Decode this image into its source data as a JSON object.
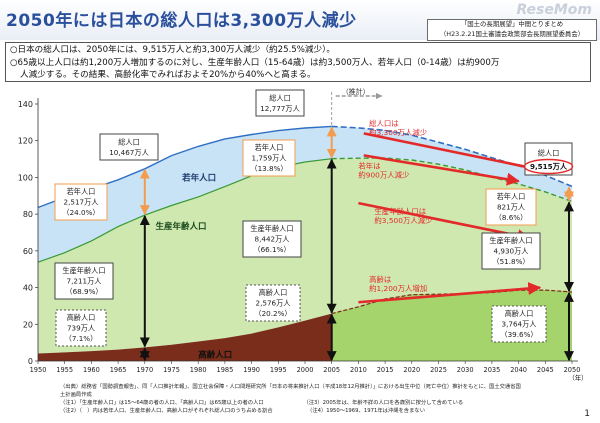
{
  "header": {
    "title": "2050年には日本の総人口は3,300万人減少",
    "watermark": "ReseMom",
    "source_lines": [
      "「国土の長期展望」中間とりまとめ",
      "（H23.2.21国土審議会政策部会長期展望委員会）"
    ]
  },
  "summary": {
    "line1": "○日本の総人口は、2050年には、9,515万人と約3,300万人減少（約25.5%減少）。",
    "line2": "○65歳以上人口は約1,200万人増加するのに対し、生産年齢人口（15-64歳）は約3,500万人、若年人口（0-14歳）は約900万",
    "line3": "人減少する。その結果、高齢化率でみればおよそ20%から40%へと高まる。"
  },
  "chart_data": {
    "type": "area",
    "x": [
      1950,
      1955,
      1960,
      1965,
      1970,
      1975,
      1980,
      1985,
      1990,
      1995,
      2000,
      2005,
      2010,
      2015,
      2020,
      2025,
      2030,
      2035,
      2040,
      2045,
      2050
    ],
    "series": [
      {
        "name": "高齢人口",
        "values": [
          4.1,
          4.7,
          5.4,
          6.2,
          7.4,
          8.9,
          10.6,
          12.5,
          14.9,
          18.3,
          22.0,
          25.8,
          29.5,
          33.8,
          36.1,
          36.4,
          36.7,
          37.3,
          38.5,
          38.6,
          37.6
        ],
        "color": "#7a2d1a"
      },
      {
        "name": "生産年齢人口",
        "values": [
          49.7,
          54.3,
          60.0,
          67.0,
          72.1,
          75.8,
          78.8,
          82.5,
          86.0,
          87.2,
          86.4,
          84.4,
          81.0,
          76.8,
          73.4,
          70.8,
          67.4,
          62.9,
          57.9,
          53.5,
          49.3
        ],
        "color": "#cfe8b0"
      },
      {
        "name": "若年人口",
        "values": [
          29.8,
          30.1,
          28.4,
          25.5,
          25.2,
          27.2,
          27.5,
          26.0,
          22.5,
          20.0,
          18.5,
          17.6,
          16.5,
          15.0,
          13.5,
          12.0,
          11.2,
          10.5,
          10.0,
          9.0,
          8.2
        ],
        "color": "#c8e3f5"
      }
    ],
    "total": [
      83.6,
      89.1,
      93.8,
      98.7,
      104.7,
      111.9,
      116.9,
      121.0,
      123.4,
      125.5,
      126.9,
      127.8,
      127.0,
      125.6,
      123.0,
      119.2,
      115.3,
      110.7,
      106.4,
      101.1,
      95.1
    ],
    "ylim": [
      0,
      140
    ],
    "yticks": [
      0,
      20,
      40,
      60,
      80,
      100,
      120,
      140
    ],
    "xtick_labels": [
      "1950",
      "1955",
      "1960",
      "1965",
      "1970",
      "1975",
      "1980",
      "1985",
      "1990",
      "1995",
      "2000",
      "2005",
      "2010",
      "2015",
      "2020",
      "2025",
      "2030",
      "2035",
      "2040",
      "2045",
      "2050"
    ],
    "x_unit": "（年）",
    "projection_label": "（推計）",
    "grid": false,
    "series_labels": {
      "young": "若年人口",
      "working": "生産年齢人口",
      "elderly": "高齢人口"
    },
    "annotations": [
      {
        "id": "total-1970",
        "year": 1970,
        "y": 115,
        "lines": [
          "総人口",
          "10,467万人"
        ]
      },
      {
        "id": "young-1970",
        "year": 1970,
        "y": 87,
        "lines": [
          "若年人口",
          "2,517万人",
          "（24.0%）"
        ]
      },
      {
        "id": "working-1970",
        "year": 1970,
        "y": 52,
        "lines": [
          "生産年齢人口",
          "7,211万人",
          "（68.9%）"
        ]
      },
      {
        "id": "elderly-1970",
        "year": 1970,
        "y": 22,
        "lines": [
          "高齢人口",
          "739万人",
          "（7.1%）"
        ]
      },
      {
        "id": "total-2005",
        "year": 2005,
        "y": 135,
        "lines": [
          "総人口",
          "12,777万人"
        ]
      },
      {
        "id": "young-2005",
        "year": 2005,
        "y": 115,
        "lines": [
          "若年人口",
          "1,759万人",
          "（13.8%）"
        ]
      },
      {
        "id": "working-2005",
        "year": 2005,
        "y": 73,
        "lines": [
          "生産年齢人口",
          "8,442万人",
          "（66.1%）"
        ]
      },
      {
        "id": "elderly-2005",
        "year": 2005,
        "y": 35,
        "lines": [
          "高齢人口",
          "2,576万人",
          "（20.2%）"
        ]
      },
      {
        "id": "total-2050",
        "year": 2050,
        "y": 108,
        "lines": [
          "総人口",
          "9,515万人"
        ]
      },
      {
        "id": "young-2050",
        "year": 2050,
        "y": 85,
        "lines": [
          "若年人口",
          "821万人",
          "（8.6%）"
        ]
      },
      {
        "id": "working-2050",
        "year": 2050,
        "y": 60,
        "lines": [
          "生産年齢人口",
          "4,930万人",
          "（51.8%）"
        ]
      },
      {
        "id": "elderly-2050",
        "year": 2050,
        "y": 22,
        "lines": [
          "高齢人口",
          "3,764万人",
          "（39.6%）"
        ]
      }
    ],
    "change_labels": [
      {
        "id": "total-change",
        "lines": [
          "総人口は",
          "約3,300万人減少"
        ]
      },
      {
        "id": "young-change",
        "lines": [
          "若年は",
          "約900万人減少"
        ]
      },
      {
        "id": "working-change",
        "lines": [
          "生産年齢人口は",
          "約3,500万人減少"
        ]
      },
      {
        "id": "elderly-change",
        "lines": [
          "高齢は",
          "約1,200万人増加"
        ]
      }
    ]
  },
  "notes": [
    "（出典）総務省「国勢調査報告」、同「人口推計年報」、国立社会保障・人口問題研究所「日本の将来推計人口（平成18年12月推計）」における出生中位（死亡中位）推計をもとに、国土交通省国",
    "土計画局作成",
    "（注1）「生産年齢人口」は15～64歳の者の人口、「高齢人口」は65歳以上の者の人口　　　　　　　　（注3）2005年は、年齢不詳の人口を各歳別に按分して含めている",
    "（注2）（　）内は若年人口、生産年齢人口、高齢人口がそれぞれ総人口のうち占める割合　　　　　　　（注4）1950～1969、1971年は沖縄を含まない"
  ],
  "page_number": "1"
}
